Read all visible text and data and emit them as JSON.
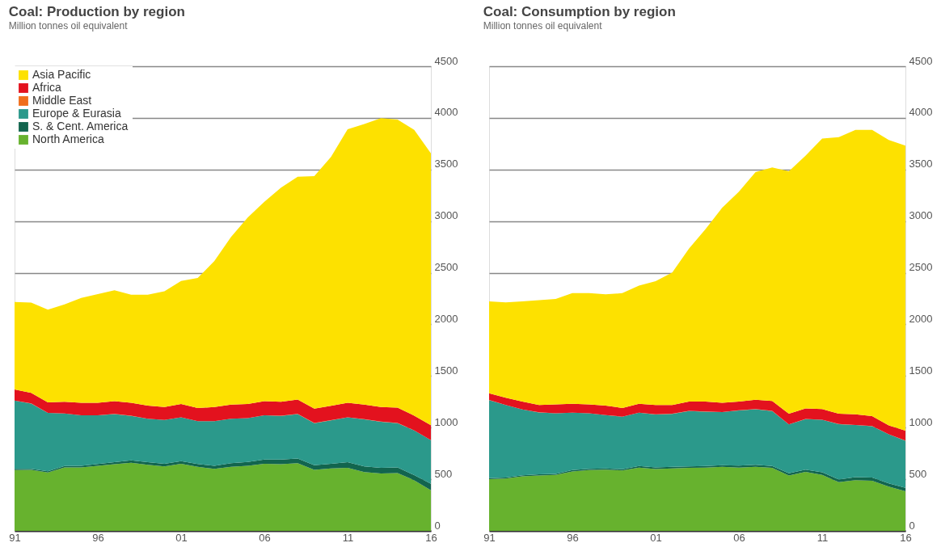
{
  "chart_data": [
    {
      "type": "area",
      "title": "Coal: Production by region",
      "subtitle": "Million tonnes oil equivalent",
      "stacked": true,
      "x": [
        1991,
        1992,
        1993,
        1994,
        1995,
        1996,
        1997,
        1998,
        1999,
        2000,
        2001,
        2002,
        2003,
        2004,
        2005,
        2006,
        2007,
        2008,
        2009,
        2010,
        2011,
        2012,
        2013,
        2014,
        2015,
        2016
      ],
      "xlim": [
        1991,
        2016
      ],
      "xticks": [
        {
          "value": 1991,
          "label": "91"
        },
        {
          "value": 1996,
          "label": "96"
        },
        {
          "value": 2001,
          "label": "01"
        },
        {
          "value": 2006,
          "label": "06"
        },
        {
          "value": 2011,
          "label": "11"
        },
        {
          "value": 2016,
          "label": "16"
        }
      ],
      "ylim": [
        0,
        4500
      ],
      "yticks": [
        0,
        500,
        1000,
        1500,
        2000,
        2500,
        3000,
        3500,
        4000,
        4500
      ],
      "grid": "y",
      "legend": "top left",
      "series": [
        {
          "name": "North America",
          "color": "#67b22e",
          "values": [
            588,
            590,
            565,
            615,
            615,
            630,
            645,
            660,
            640,
            625,
            650,
            620,
            600,
            620,
            630,
            650,
            645,
            655,
            590,
            605,
            610,
            570,
            555,
            560,
            490,
            393
          ]
        },
        {
          "name": "S. & Cent. America",
          "color": "#12654e",
          "values": [
            12,
            10,
            13,
            13,
            15,
            18,
            20,
            22,
            25,
            25,
            25,
            28,
            30,
            35,
            38,
            40,
            45,
            45,
            45,
            45,
            55,
            55,
            55,
            55,
            50,
            62
          ]
        },
        {
          "name": "Europe & Eurasia",
          "color": "#2b998b",
          "values": [
            661,
            633,
            564,
            508,
            489,
            471,
            466,
            432,
            420,
            424,
            424,
            414,
            432,
            430,
            423,
            429,
            424,
            431,
            408,
            421,
            434,
            455,
            447,
            428,
            432,
            423
          ]
        },
        {
          "name": "Middle East",
          "color": "#f06e1c",
          "values": [
            1,
            1,
            1,
            1,
            1,
            1,
            1,
            1,
            1,
            1,
            1,
            1,
            1,
            1,
            1,
            1,
            1,
            1,
            1,
            1,
            1,
            1,
            1,
            1,
            1,
            1
          ]
        },
        {
          "name": "Africa",
          "color": "#e3121e",
          "values": [
            108,
            102,
            102,
            114,
            120,
            120,
            125,
            125,
            128,
            125,
            128,
            126,
            137,
            137,
            136,
            137,
            136,
            139,
            139,
            139,
            140,
            142,
            142,
            150,
            142,
            145
          ]
        },
        {
          "name": "Asia Pacific",
          "color": "#fde100",
          "values": [
            846,
            874,
            897,
            942,
            1016,
            1053,
            1073,
            1047,
            1073,
            1121,
            1192,
            1260,
            1414,
            1624,
            1806,
            1931,
            2073,
            2158,
            2252,
            2411,
            2649,
            2717,
            2797,
            2789,
            2769,
            2632
          ]
        }
      ]
    },
    {
      "type": "area",
      "title": "Coal: Consumption by region",
      "subtitle": "Million tonnes oil equivalent",
      "stacked": true,
      "x": [
        1991,
        1992,
        1993,
        1994,
        1995,
        1996,
        1997,
        1998,
        1999,
        2000,
        2001,
        2002,
        2003,
        2004,
        2005,
        2006,
        2007,
        2008,
        2009,
        2010,
        2011,
        2012,
        2013,
        2014,
        2015,
        2016
      ],
      "xlim": [
        1991,
        2016
      ],
      "xticks": [
        {
          "value": 1991,
          "label": "91"
        },
        {
          "value": 1996,
          "label": "96"
        },
        {
          "value": 2001,
          "label": "01"
        },
        {
          "value": 2006,
          "label": "06"
        },
        {
          "value": 2011,
          "label": "11"
        },
        {
          "value": 2016,
          "label": "16"
        }
      ],
      "ylim": [
        0,
        4500
      ],
      "yticks": [
        0,
        500,
        1000,
        1500,
        2000,
        2500,
        3000,
        3500,
        4000,
        4500
      ],
      "grid": "y",
      "legend": false,
      "series": [
        {
          "color": "#67b22e",
          "values": [
            500,
            506,
            528,
            537,
            542,
            576,
            588,
            593,
            585,
            613,
            599,
            605,
            610,
            613,
            621,
            613,
            621,
            610,
            537,
            571,
            542,
            472,
            492,
            486,
            429,
            384
          ]
        },
        {
          "color": "#12654e",
          "values": [
            10,
            10,
            10,
            10,
            10,
            12,
            12,
            12,
            12,
            15,
            15,
            15,
            15,
            15,
            15,
            18,
            18,
            18,
            20,
            22,
            25,
            25,
            28,
            30,
            30,
            32
          ]
        },
        {
          "color": "#2b998b",
          "values": [
            756,
            702,
            637,
            600,
            586,
            556,
            538,
            516,
            508,
            516,
            513,
            513,
            536,
            527,
            514,
            536,
            539,
            533,
            474,
            489,
            509,
            537,
            505,
            498,
            476,
            457
          ]
        },
        {
          "color": "#f06e1c",
          "values": [
            1,
            1,
            1,
            1,
            1,
            1,
            1,
            1,
            1,
            1,
            1,
            1,
            1,
            1,
            1,
            1,
            1,
            1,
            1,
            1,
            1,
            1,
            1,
            1,
            1,
            1
          ]
        },
        {
          "color": "#e3121e",
          "values": [
            65,
            70,
            76,
            71,
            85,
            85,
            85,
            91,
            84,
            85,
            91,
            85,
            90,
            96,
            90,
            84,
            90,
            96,
            102,
            102,
            102,
            99,
            102,
            96,
            85,
            96
          ]
        },
        {
          "color": "#fde100",
          "values": [
            891,
            923,
            971,
            1015,
            1022,
            1072,
            1078,
            1078,
            1112,
            1146,
            1199,
            1284,
            1482,
            1672,
            1889,
            2033,
            2206,
            2262,
            2349,
            2448,
            2621,
            2680,
            2756,
            2773,
            2765,
            2762
          ]
        }
      ]
    }
  ]
}
